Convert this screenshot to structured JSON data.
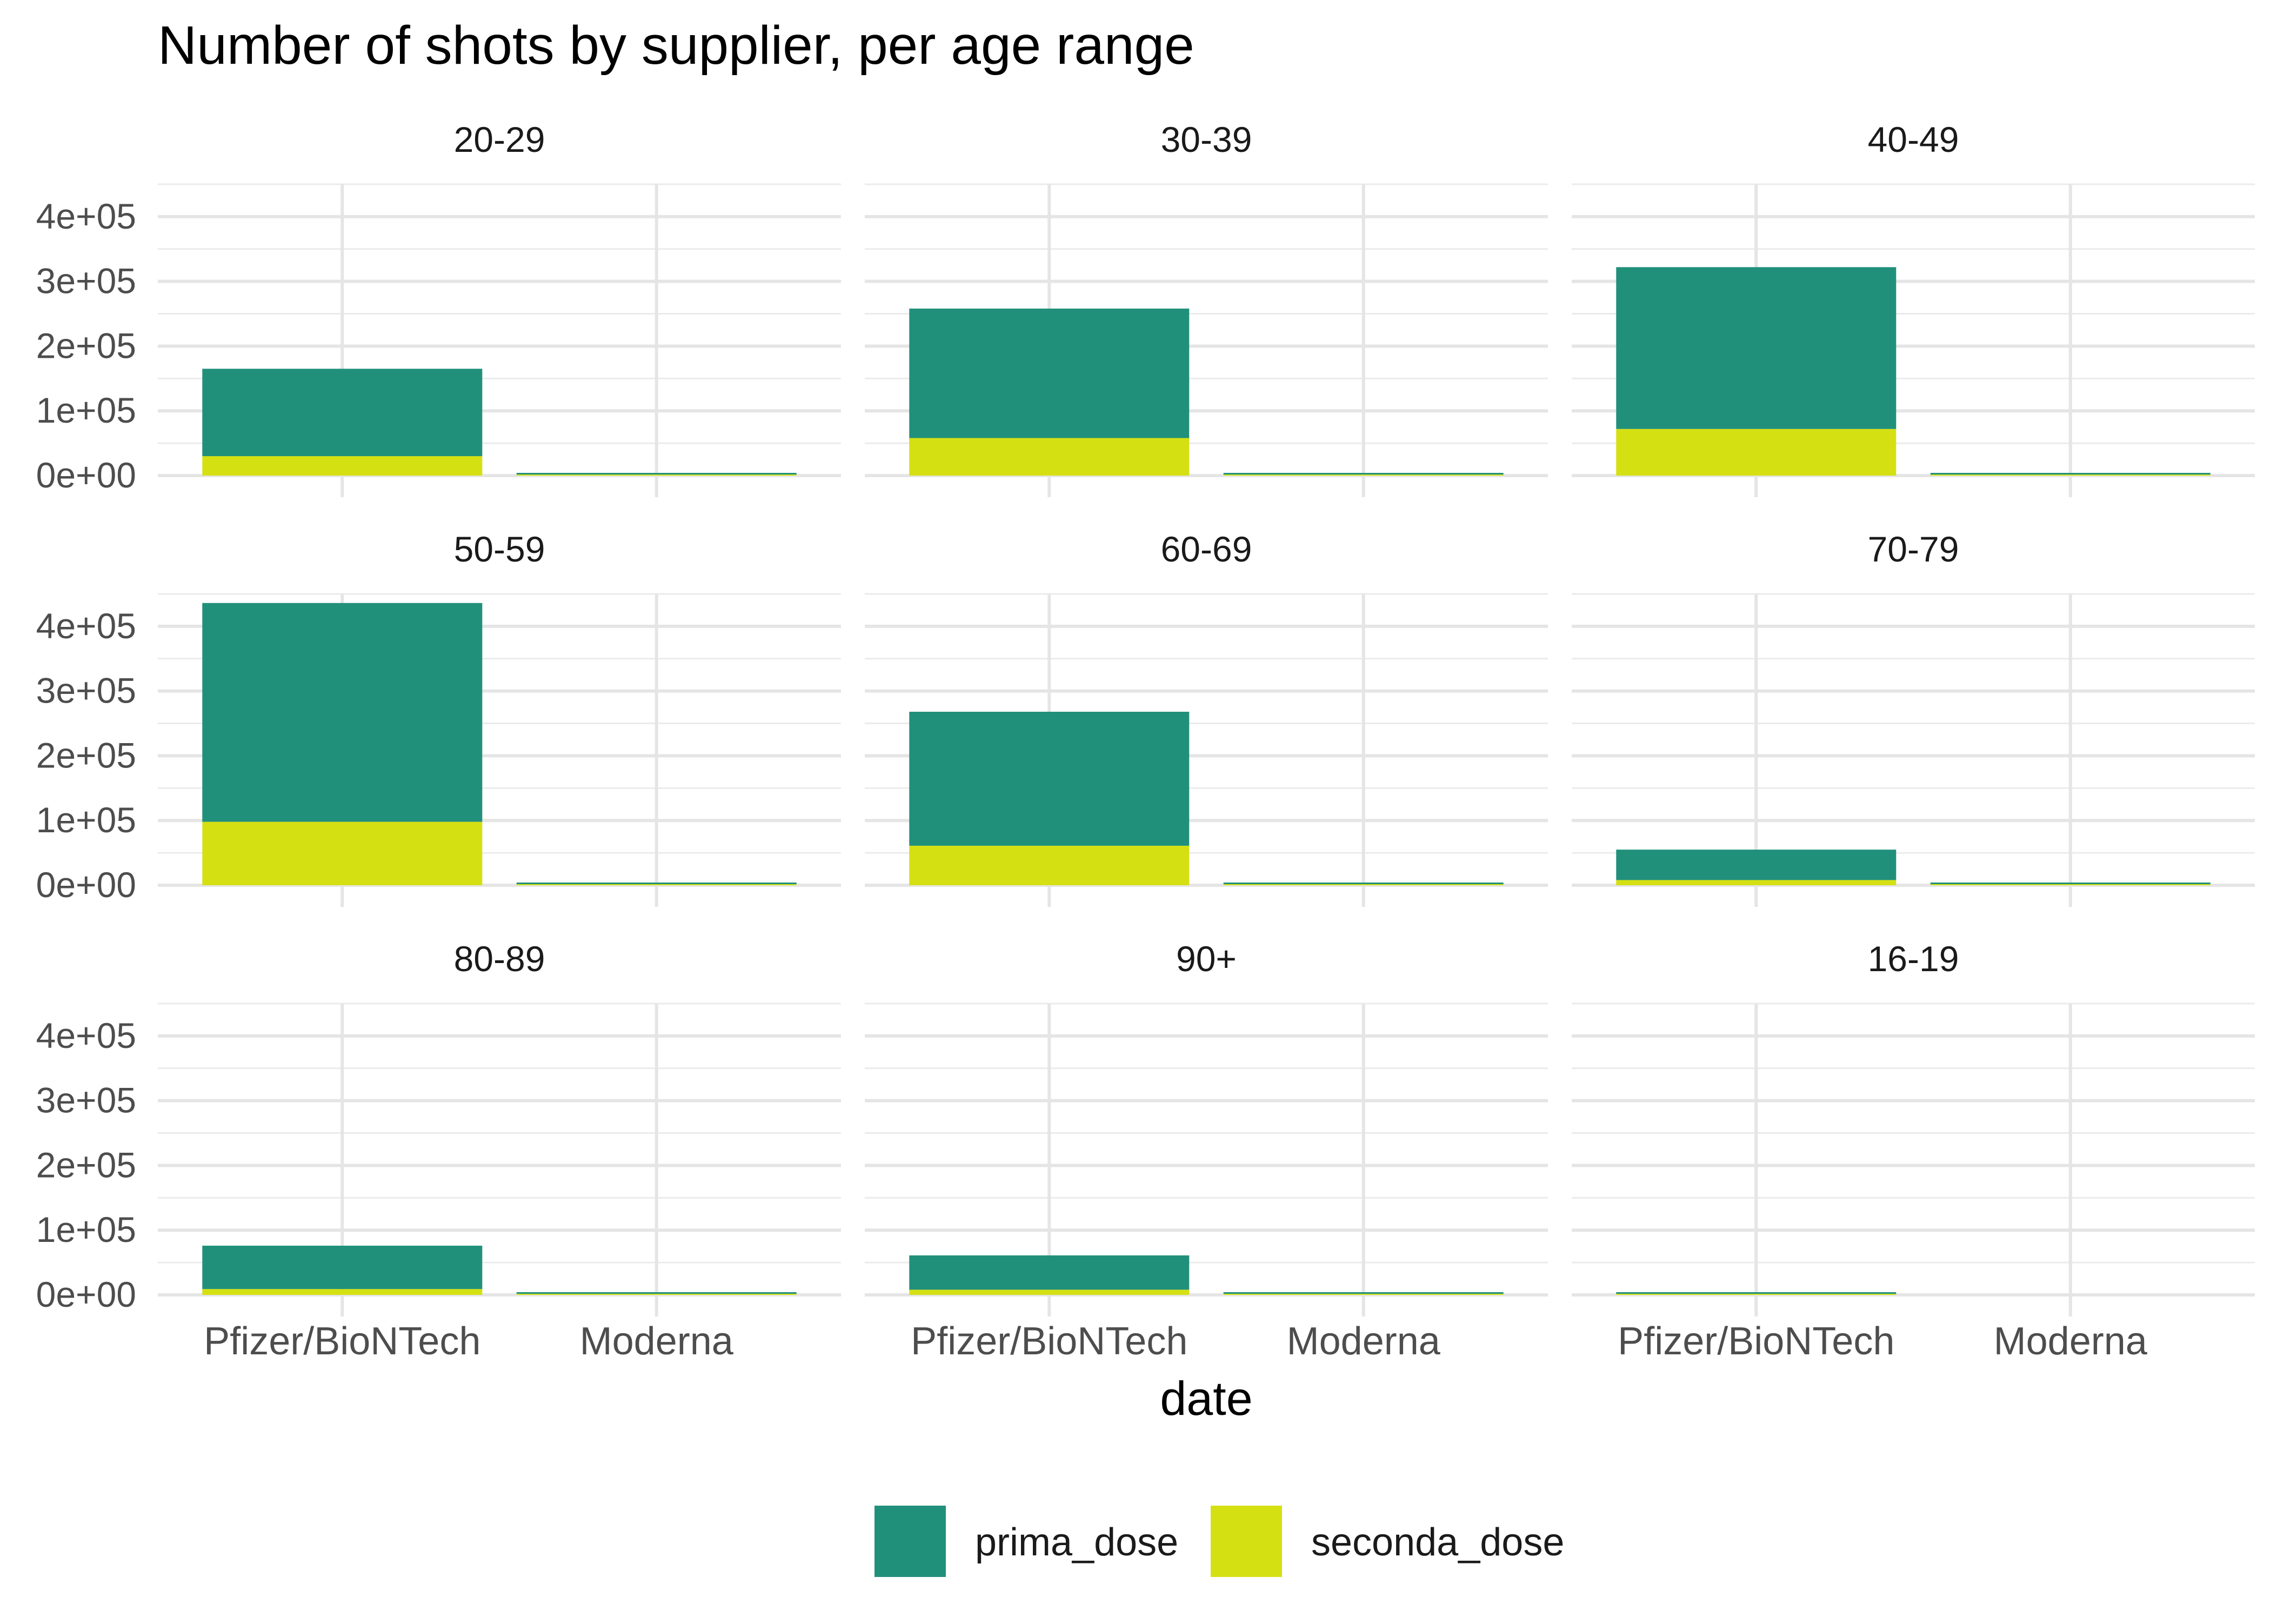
{
  "chart_data": {
    "type": "bar",
    "stacked": true,
    "title": "Number of shots by supplier, per age range",
    "xlabel": "date",
    "ylabel": "",
    "ylim": [
      0,
      450000
    ],
    "y_ticks": [
      0,
      100000,
      200000,
      300000,
      400000
    ],
    "y_tick_labels": [
      "0e+00",
      "1e+05",
      "2e+05",
      "3e+05",
      "4e+05"
    ],
    "categories": [
      "Pfizer/BioNTech",
      "Moderna"
    ],
    "series_names": [
      "prima_dose",
      "seconda_dose"
    ],
    "colors": {
      "prima_dose": "#21907B",
      "seconda_dose": "#D5E013"
    },
    "grid": true,
    "legend_position": "bottom",
    "panels": [
      {
        "name": "20-29",
        "prima_dose": [
          135000,
          1500
        ],
        "seconda_dose": [
          30000,
          500
        ]
      },
      {
        "name": "30-39",
        "prima_dose": [
          200000,
          2000
        ],
        "seconda_dose": [
          58000,
          500
        ]
      },
      {
        "name": "40-49",
        "prima_dose": [
          250000,
          2000
        ],
        "seconda_dose": [
          72000,
          500
        ]
      },
      {
        "name": "50-59",
        "prima_dose": [
          338000,
          2500
        ],
        "seconda_dose": [
          98000,
          500
        ]
      },
      {
        "name": "60-69",
        "prima_dose": [
          207000,
          2000
        ],
        "seconda_dose": [
          61000,
          500
        ]
      },
      {
        "name": "70-79",
        "prima_dose": [
          47000,
          1000
        ],
        "seconda_dose": [
          8000,
          300
        ]
      },
      {
        "name": "80-89",
        "prima_dose": [
          67000,
          2000
        ],
        "seconda_dose": [
          9000,
          500
        ]
      },
      {
        "name": "90+",
        "prima_dose": [
          53000,
          1000
        ],
        "seconda_dose": [
          8000,
          300
        ]
      },
      {
        "name": "16-19",
        "prima_dose": [
          1500,
          0
        ],
        "seconda_dose": [
          300,
          0
        ]
      }
    ]
  }
}
